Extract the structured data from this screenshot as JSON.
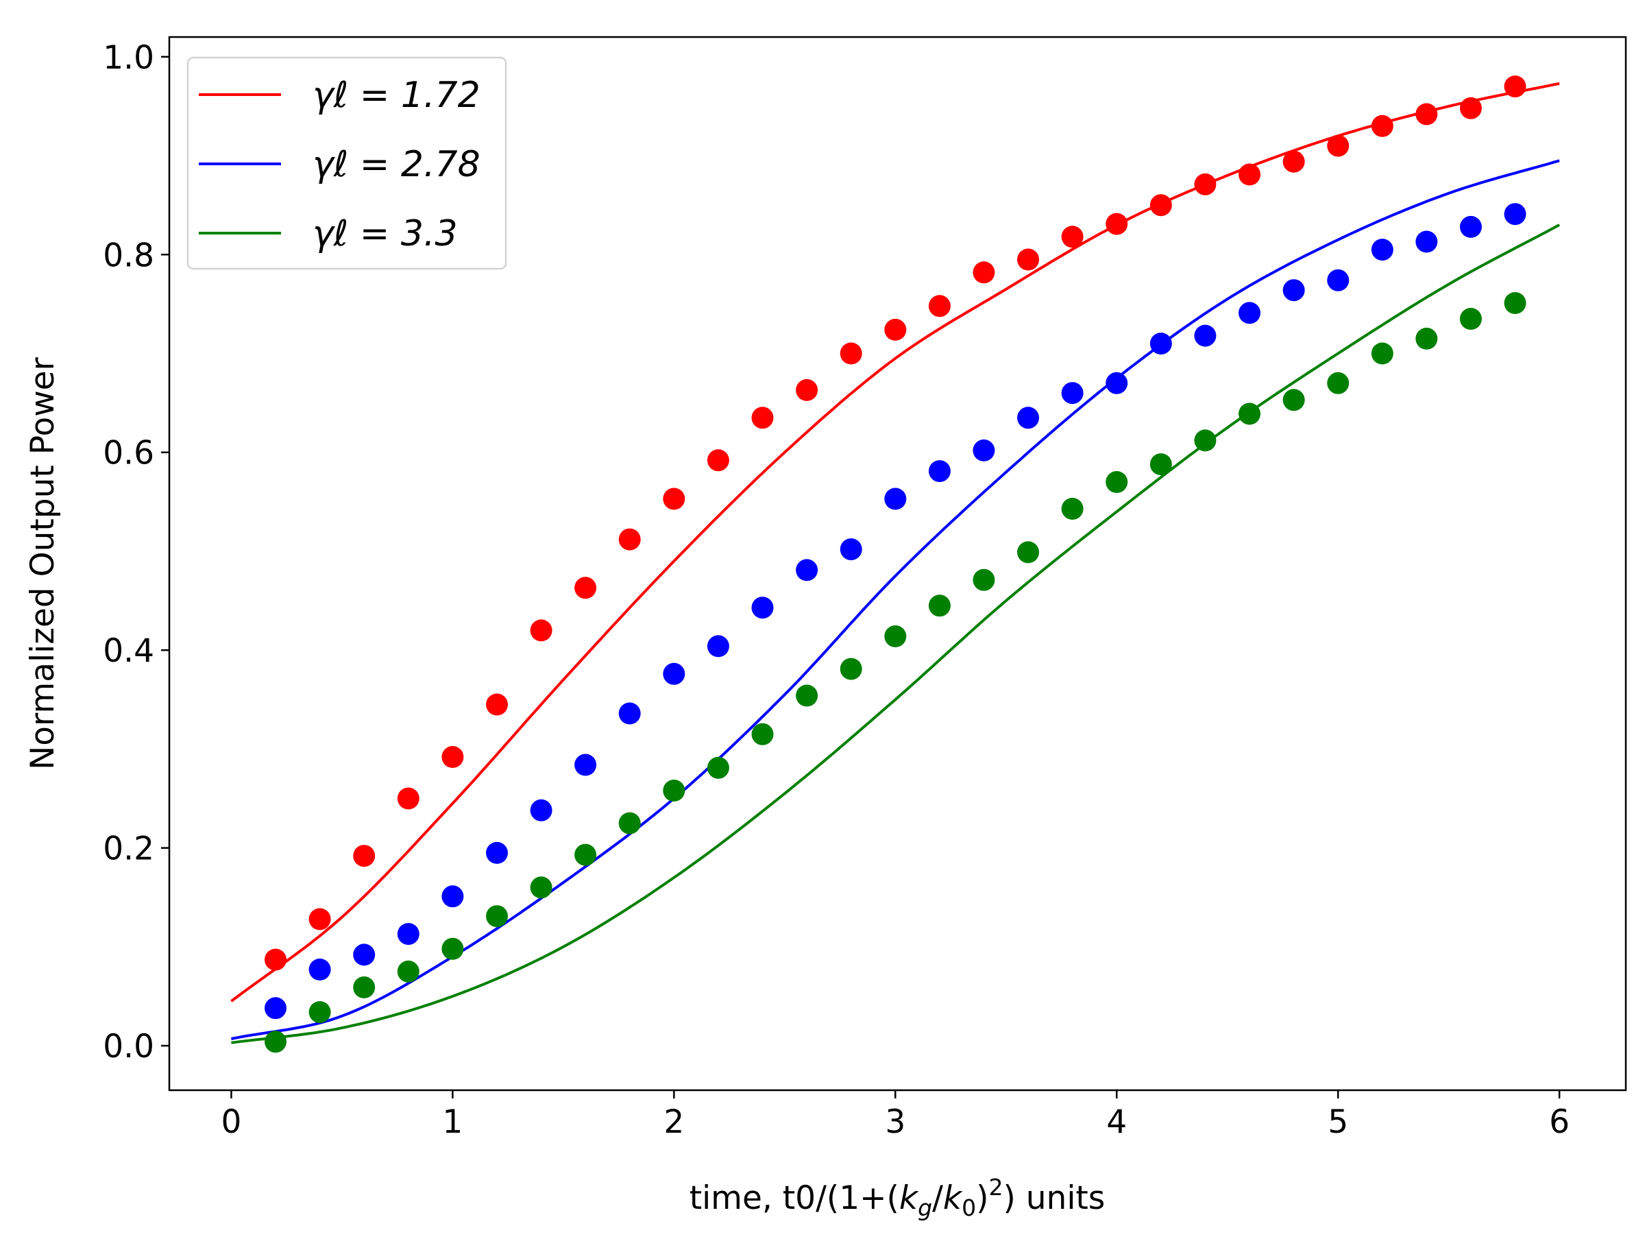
{
  "chart_data": {
    "type": "scatter",
    "title": "",
    "xlabel": "time, t0/(1+(k_g/k_0)²) units",
    "xlabel_parts": {
      "prefix": "time, t0/(1+(",
      "k1": "k",
      "k1_sub": "g",
      "slash": "/",
      "k2": "k",
      "k2_sub": "0",
      "close": ")",
      "exp": "2",
      "suffix": ") units"
    },
    "ylabel": "Normalized Output Power",
    "xlim": [
      -0.28,
      6.3
    ],
    "ylim": [
      -0.045,
      1.02
    ],
    "xticks": [
      0,
      1,
      2,
      3,
      4,
      5,
      6
    ],
    "xtick_labels": [
      "0",
      "1",
      "2",
      "3",
      "4",
      "5",
      "6"
    ],
    "yticks": [
      0.0,
      0.2,
      0.4,
      0.6,
      0.8,
      1.0
    ],
    "ytick_labels": [
      "0.0",
      "0.2",
      "0.4",
      "0.6",
      "0.8",
      "1.0"
    ],
    "grid": false,
    "legend_position": "upper-left",
    "legend_entries": [
      "γℓ = 1.72",
      "γℓ = 2.78",
      "γℓ = 3.3"
    ],
    "series": [
      {
        "name": "γℓ = 1.72",
        "color": "#ff0000",
        "points": {
          "x": [
            0.2,
            0.4,
            0.6,
            0.8,
            1.0,
            1.2,
            1.4,
            1.6,
            1.8,
            2.0,
            2.2,
            2.4,
            2.6,
            2.8,
            3.0,
            3.2,
            3.4,
            3.6,
            3.8,
            4.0,
            4.2,
            4.4,
            4.6,
            4.8,
            5.0,
            5.2,
            5.4,
            5.6,
            5.8
          ],
          "y": [
            0.087,
            0.128,
            0.192,
            0.25,
            0.292,
            0.345,
            0.42,
            0.463,
            0.512,
            0.553,
            0.592,
            0.635,
            0.663,
            0.7,
            0.724,
            0.748,
            0.782,
            0.795,
            0.818,
            0.831,
            0.85,
            0.871,
            0.881,
            0.894,
            0.91,
            0.93,
            0.942,
            0.948,
            0.97
          ]
        },
        "curve": {
          "x": [
            0.0,
            0.5,
            1.0,
            1.5,
            2.0,
            2.5,
            3.0,
            3.5,
            4.0,
            4.5,
            5.0,
            5.5,
            6.0
          ],
          "y": [
            0.045,
            0.13,
            0.245,
            0.37,
            0.49,
            0.6,
            0.695,
            0.765,
            0.83,
            0.88,
            0.92,
            0.95,
            0.973
          ]
        }
      },
      {
        "name": "γℓ = 2.78",
        "color": "#0000ff",
        "points": {
          "x": [
            0.2,
            0.4,
            0.6,
            0.8,
            1.0,
            1.2,
            1.4,
            1.6,
            1.8,
            2.0,
            2.2,
            2.4,
            2.6,
            2.8,
            3.0,
            3.2,
            3.4,
            3.6,
            3.8,
            4.0,
            4.2,
            4.4,
            4.6,
            4.8,
            5.0,
            5.2,
            5.4,
            5.6,
            5.8
          ],
          "y": [
            0.038,
            0.077,
            0.092,
            0.113,
            0.151,
            0.195,
            0.238,
            0.284,
            0.336,
            0.376,
            0.404,
            0.443,
            0.481,
            0.502,
            0.553,
            0.581,
            0.602,
            0.635,
            0.66,
            0.67,
            0.71,
            0.718,
            0.741,
            0.764,
            0.774,
            0.805,
            0.813,
            0.828,
            0.841
          ]
        },
        "curve": {
          "x": [
            0.0,
            0.5,
            1.0,
            1.5,
            2.0,
            2.5,
            3.0,
            3.5,
            4.0,
            4.5,
            5.0,
            5.5,
            6.0
          ],
          "y": [
            0.007,
            0.03,
            0.09,
            0.165,
            0.25,
            0.355,
            0.475,
            0.58,
            0.675,
            0.755,
            0.815,
            0.862,
            0.895
          ]
        }
      },
      {
        "name": "γℓ = 3.3",
        "color": "#008000",
        "points": {
          "x": [
            0.2,
            0.4,
            0.6,
            0.8,
            1.0,
            1.2,
            1.4,
            1.6,
            1.8,
            2.0,
            2.2,
            2.4,
            2.6,
            2.8,
            3.0,
            3.2,
            3.4,
            3.6,
            3.8,
            4.0,
            4.2,
            4.4,
            4.6,
            4.8,
            5.0,
            5.2,
            5.4,
            5.6,
            5.8
          ],
          "y": [
            0.004,
            0.034,
            0.059,
            0.075,
            0.098,
            0.131,
            0.16,
            0.193,
            0.225,
            0.258,
            0.281,
            0.315,
            0.354,
            0.381,
            0.414,
            0.445,
            0.471,
            0.499,
            0.543,
            0.57,
            0.588,
            0.612,
            0.639,
            0.653,
            0.67,
            0.7,
            0.715,
            0.735,
            0.751
          ]
        },
        "curve": {
          "x": [
            0.0,
            0.5,
            1.0,
            1.5,
            2.0,
            2.5,
            3.0,
            3.5,
            4.0,
            4.5,
            5.0,
            5.5,
            6.0
          ],
          "y": [
            0.003,
            0.018,
            0.05,
            0.1,
            0.17,
            0.255,
            0.35,
            0.45,
            0.54,
            0.625,
            0.7,
            0.77,
            0.83
          ]
        }
      }
    ]
  }
}
